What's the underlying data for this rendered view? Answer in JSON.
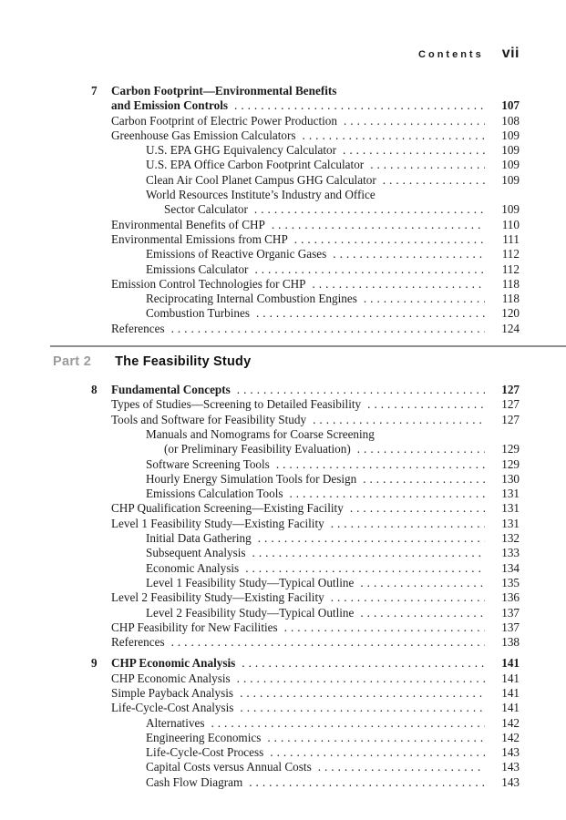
{
  "header": {
    "title": "Contents",
    "folio": "vii"
  },
  "sections": [
    {
      "type": "chapter",
      "rows": [
        {
          "num": "7",
          "text": "Carbon Footprint—Environmental Benefits",
          "level": 0,
          "bold": true
        },
        {
          "text": "and Emission Controls",
          "page": "107",
          "level": 0,
          "bold": true
        },
        {
          "text": "Carbon Footprint of Electric Power Production",
          "page": "108",
          "level": 0
        },
        {
          "text": "Greenhouse Gas Emission Calculators",
          "page": "109",
          "level": 0
        },
        {
          "text": "U.S. EPA GHG Equivalency Calculator",
          "page": "109",
          "level": 1
        },
        {
          "text": "U.S. EPA Office Carbon Footprint Calculator",
          "page": "109",
          "level": 1
        },
        {
          "text": "Clean Air Cool Planet Campus GHG Calculator",
          "page": "109",
          "level": 1
        },
        {
          "text": "World Resources Institute’s Industry and Office",
          "level": 1
        },
        {
          "text": "Sector Calculator",
          "page": "109",
          "level": 2
        },
        {
          "text": "Environmental Benefits of CHP",
          "page": "110",
          "level": 0
        },
        {
          "text": "Environmental Emissions from CHP",
          "page": "111",
          "level": 0
        },
        {
          "text": "Emissions of Reactive Organic Gases",
          "page": "112",
          "level": 1
        },
        {
          "text": "Emissions Calculator",
          "page": "112",
          "level": 1
        },
        {
          "text": "Emission Control Technologies for CHP",
          "page": "118",
          "level": 0
        },
        {
          "text": "Reciprocating Internal Combustion Engines",
          "page": "118",
          "level": 1
        },
        {
          "text": "Combustion Turbines",
          "page": "120",
          "level": 1
        },
        {
          "text": "References",
          "page": "124",
          "level": 0
        }
      ]
    },
    {
      "type": "part",
      "label": "Part 2",
      "title": "The Feasibility Study"
    },
    {
      "type": "chapter",
      "after_part": true,
      "rows": [
        {
          "num": "8",
          "text": "Fundamental Concepts",
          "page": "127",
          "level": 0,
          "bold": true
        },
        {
          "text": "Types of Studies—Screening to Detailed Feasibility",
          "page": "127",
          "level": 0
        },
        {
          "text": "Tools and Software for Feasibility Study",
          "page": "127",
          "level": 0
        },
        {
          "text": "Manuals and Nomograms for Coarse Screening",
          "level": 1
        },
        {
          "text": "(or Preliminary Feasibility Evaluation)",
          "page": "129",
          "level": 2
        },
        {
          "text": "Software Screening Tools",
          "page": "129",
          "level": 1
        },
        {
          "text": "Hourly Energy Simulation Tools for Design",
          "page": "130",
          "level": 1
        },
        {
          "text": "Emissions Calculation Tools",
          "page": "131",
          "level": 1
        },
        {
          "text": "CHP Qualification Screening—Existing Facility",
          "page": "131",
          "level": 0
        },
        {
          "text": "Level 1 Feasibility Study—Existing Facility",
          "page": "131",
          "level": 0
        },
        {
          "text": "Initial Data Gathering",
          "page": "132",
          "level": 1
        },
        {
          "text": "Subsequent Analysis",
          "page": "133",
          "level": 1
        },
        {
          "text": "Economic Analysis",
          "page": "134",
          "level": 1
        },
        {
          "text": "Level 1 Feasibility Study—Typical Outline",
          "page": "135",
          "level": 1
        },
        {
          "text": "Level 2 Feasibility Study—Existing Facility",
          "page": "136",
          "level": 0
        },
        {
          "text": "Level 2 Feasibility Study—Typical Outline",
          "page": "137",
          "level": 1
        },
        {
          "text": "CHP Feasibility for New Facilities",
          "page": "137",
          "level": 0
        },
        {
          "text": "References",
          "page": "138",
          "level": 0
        }
      ]
    },
    {
      "type": "chapter",
      "gap_before": true,
      "rows": [
        {
          "num": "9",
          "text": "CHP Economic Analysis",
          "page": "141",
          "level": 0,
          "bold": true
        },
        {
          "text": "CHP Economic Analysis",
          "page": "141",
          "level": 0
        },
        {
          "text": "Simple Payback Analysis",
          "page": "141",
          "level": 0
        },
        {
          "text": "Life-Cycle-Cost Analysis",
          "page": "141",
          "level": 0
        },
        {
          "text": "Alternatives",
          "page": "142",
          "level": 1
        },
        {
          "text": "Engineering Economics",
          "page": "142",
          "level": 1
        },
        {
          "text": "Life-Cycle-Cost Process",
          "page": "143",
          "level": 1
        },
        {
          "text": "Capital Costs versus Annual Costs",
          "page": "143",
          "level": 1
        },
        {
          "text": "Cash Flow Diagram",
          "page": "143",
          "level": 1
        }
      ]
    }
  ]
}
